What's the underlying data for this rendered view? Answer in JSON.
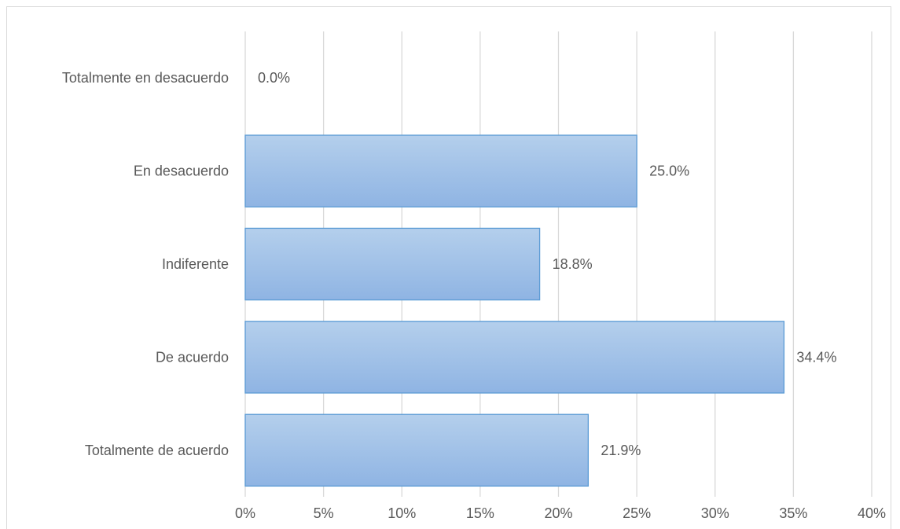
{
  "chart_data": {
    "type": "bar",
    "orientation": "horizontal",
    "categories": [
      "Totalmente en desacuerdo",
      "En desacuerdo",
      "Indiferente",
      "De acuerdo",
      "Totalmente de acuerdo"
    ],
    "values": [
      0.0,
      25.0,
      18.8,
      34.4,
      21.9
    ],
    "value_labels": [
      "0.0%",
      "25.0%",
      "18.8%",
      "34.4%",
      "21.9%"
    ],
    "x_ticks": [
      "0%",
      "5%",
      "10%",
      "15%",
      "20%",
      "25%",
      "30%",
      "35%",
      "40%"
    ],
    "xlim": [
      0,
      40
    ],
    "grid": "vertical",
    "bar_color": "#9dc3e6",
    "bar_border_color": "#5b9bd5",
    "title": "",
    "xlabel": "",
    "ylabel": ""
  }
}
